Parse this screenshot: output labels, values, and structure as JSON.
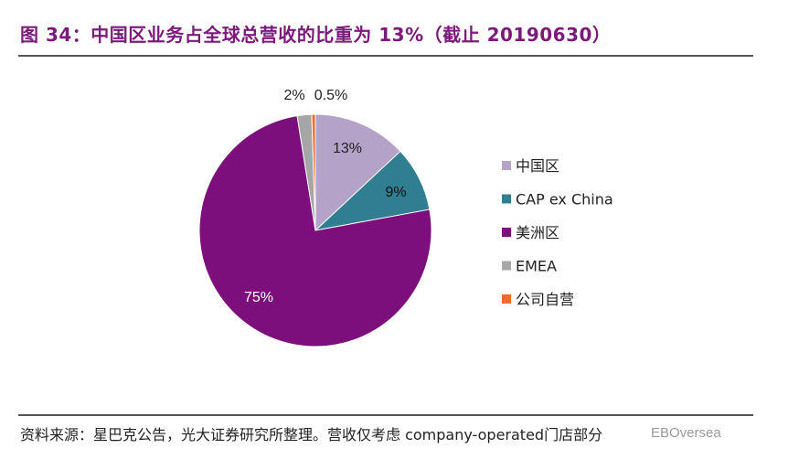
{
  "figure": {
    "title": "图 34：中国区业务占全球总营收的比重为 13%（截止 20190630）",
    "source": "资料来源：星巴克公告，光大证券研究所整理。营收仅考虑 company-operated门店部分",
    "watermark": "EBOversea"
  },
  "chart_data": {
    "type": "pie",
    "slices": [
      {
        "name": "中国区",
        "value": 13,
        "label": "13%",
        "color": "#b4a2c9"
      },
      {
        "name": "CAP ex China",
        "value": 9,
        "label": "9%",
        "color": "#2f7f90"
      },
      {
        "name": "美洲区",
        "value": 75,
        "label": "75%",
        "color": "#7d0f7d"
      },
      {
        "name": "EMEA",
        "value": 2,
        "label": "2%",
        "color": "#a6a6a6"
      },
      {
        "name": "公司自营",
        "value": 0.5,
        "label": "0.5%",
        "color": "#f26b2d"
      }
    ],
    "start_angle": "12 o'clock",
    "direction": "clockwise",
    "legend_position": "right"
  }
}
